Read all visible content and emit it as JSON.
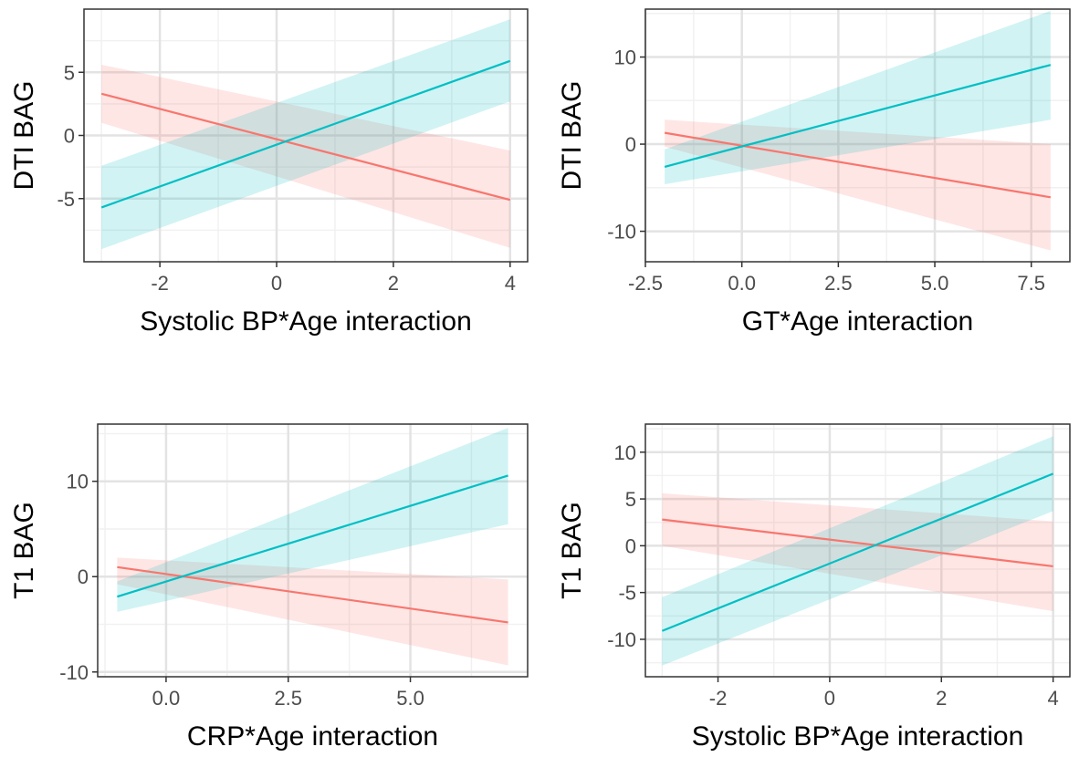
{
  "colors": {
    "series_a": "#F8766D",
    "series_b": "#00BFC4",
    "band_a": "#F8766D",
    "band_b": "#00BFC4",
    "grid_major": "#e3e3e3",
    "grid_minor": "#f1f1f1",
    "panel_border": "#333333",
    "tick_text": "#4d4d4d"
  },
  "chart_data": [
    {
      "type": "line",
      "xlabel": "Systolic BP*Age interaction",
      "ylabel": "DTI BAG",
      "xlim": [
        -3.3,
        4.3
      ],
      "ylim": [
        -10,
        10
      ],
      "x_ticks": [
        -2,
        0,
        2,
        4
      ],
      "x_tick_labels": [
        "-2",
        "0",
        "2",
        "4"
      ],
      "y_ticks": [
        -5,
        0,
        5
      ],
      "y_tick_labels": [
        "-5",
        "0",
        "5"
      ],
      "grid": true,
      "series": [
        {
          "x": [
            -3,
            4
          ],
          "y": [
            3.3,
            -5.1
          ],
          "lower": [
            1.0,
            -8.9
          ],
          "upper": [
            5.6,
            -1.2
          ]
        },
        {
          "x": [
            -3,
            4
          ],
          "y": [
            -5.7,
            5.9
          ],
          "lower": [
            -9.0,
            2.7
          ],
          "upper": [
            -2.4,
            9.2
          ]
        }
      ]
    },
    {
      "type": "line",
      "xlabel": "GT*Age interaction",
      "ylabel": "DTI BAG",
      "xlim": [
        -2.5,
        8.5
      ],
      "ylim": [
        -13.5,
        15.5
      ],
      "x_ticks": [
        -2.5,
        0,
        2.5,
        5,
        7.5
      ],
      "x_tick_labels": [
        "-2.5",
        "0.0",
        "2.5",
        "5.0",
        "7.5"
      ],
      "y_ticks": [
        -10,
        0,
        10
      ],
      "y_tick_labels": [
        "-10",
        "0",
        "10"
      ],
      "grid": true,
      "series": [
        {
          "x": [
            -2,
            8
          ],
          "y": [
            1.3,
            -6.1
          ],
          "lower": [
            -0.3,
            -12.2
          ],
          "upper": [
            2.8,
            0.0
          ]
        },
        {
          "x": [
            -2,
            8
          ],
          "y": [
            -2.6,
            9.1
          ],
          "lower": [
            -4.6,
            2.8
          ],
          "upper": [
            -0.6,
            15.3
          ]
        }
      ]
    },
    {
      "type": "line",
      "xlabel": "CRP*Age interaction",
      "ylabel": "T1 BAG",
      "xlim": [
        -1.4,
        7.4
      ],
      "ylim": [
        -10.5,
        16
      ],
      "x_ticks": [
        0,
        2.5,
        5
      ],
      "x_tick_labels": [
        "0.0",
        "2.5",
        "5.0"
      ],
      "y_ticks": [
        -10,
        0,
        10
      ],
      "y_tick_labels": [
        "-10",
        "0",
        "10"
      ],
      "grid": true,
      "series": [
        {
          "x": [
            -1,
            7
          ],
          "y": [
            1.0,
            -4.8
          ],
          "lower": [
            -0.8,
            -9.3
          ],
          "upper": [
            2.0,
            -0.3
          ]
        },
        {
          "x": [
            -1,
            7
          ],
          "y": [
            -2.1,
            10.6
          ],
          "lower": [
            -3.7,
            5.5
          ],
          "upper": [
            -0.5,
            15.6
          ]
        }
      ]
    },
    {
      "type": "line",
      "xlabel": "Systolic BP*Age interaction",
      "ylabel": "T1 BAG",
      "xlim": [
        -3.3,
        4.3
      ],
      "ylim": [
        -14,
        13
      ],
      "x_ticks": [
        -2,
        0,
        2,
        4
      ],
      "x_tick_labels": [
        "-2",
        "0",
        "2",
        "4"
      ],
      "y_ticks": [
        -10,
        -5,
        0,
        5,
        10
      ],
      "y_tick_labels": [
        "-10",
        "-5",
        "0",
        "5",
        "10"
      ],
      "grid": true,
      "series": [
        {
          "x": [
            -3,
            4
          ],
          "y": [
            2.8,
            -2.2
          ],
          "lower": [
            0.0,
            -7.0
          ],
          "upper": [
            5.6,
            2.6
          ]
        },
        {
          "x": [
            -3,
            4
          ],
          "y": [
            -9.1,
            7.7
          ],
          "lower": [
            -12.8,
            3.7
          ],
          "upper": [
            -5.5,
            11.7
          ]
        }
      ]
    }
  ]
}
